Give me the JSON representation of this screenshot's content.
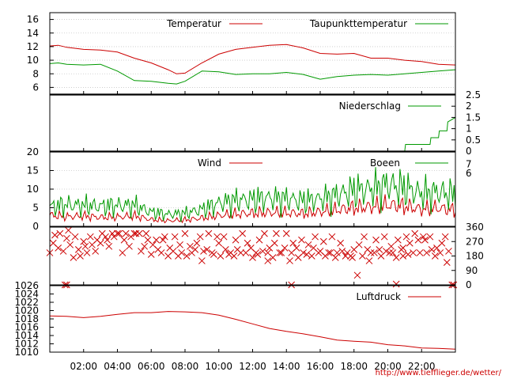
{
  "chart_data": [
    {
      "type": "line",
      "x_unit": "hour",
      "xlim": [
        0,
        24
      ],
      "ylim": [
        5,
        17
      ],
      "yticks": [
        "16",
        "14",
        "12",
        "10",
        "8",
        "6"
      ],
      "grid": true,
      "legend_position": "top-right",
      "series": [
        {
          "name": "Temperatur",
          "color": "#cc0000",
          "x": [
            0,
            0.5,
            1,
            2,
            3,
            4,
            5,
            6,
            7,
            7.5,
            8,
            9,
            10,
            11,
            12,
            13,
            14,
            15,
            16,
            17,
            18,
            19,
            20,
            21,
            22,
            23,
            24
          ],
          "y": [
            12.1,
            12.2,
            11.9,
            11.6,
            11.5,
            11.2,
            10.3,
            9.6,
            8.6,
            8.0,
            8.1,
            9.6,
            10.9,
            11.6,
            11.9,
            12.2,
            12.3,
            11.8,
            11.0,
            10.9,
            11.0,
            10.3,
            10.3,
            10.0,
            9.8,
            9.4,
            9.3
          ]
        },
        {
          "name": "Taupunkttemperatur",
          "color": "#009900",
          "x": [
            0,
            0.5,
            1,
            2,
            3,
            4,
            5,
            6,
            7,
            7.5,
            8,
            9,
            10,
            11,
            12,
            13,
            14,
            15,
            16,
            17,
            18,
            19,
            20,
            21,
            22,
            23,
            24
          ],
          "y": [
            9.5,
            9.6,
            9.4,
            9.3,
            9.4,
            8.4,
            7.0,
            6.9,
            6.6,
            6.5,
            6.9,
            8.4,
            8.3,
            7.9,
            8.0,
            8.0,
            8.2,
            7.9,
            7.2,
            7.6,
            7.8,
            7.9,
            7.8,
            8.0,
            8.2,
            8.4,
            8.6
          ]
        }
      ]
    },
    {
      "type": "line",
      "x_unit": "hour",
      "xlim": [
        0,
        24
      ],
      "ylim": [
        0,
        2.5
      ],
      "yticks": [
        "2.5",
        "2",
        "1.5",
        "1",
        "0.5",
        "0"
      ],
      "legend_position": "top-right",
      "series": [
        {
          "name": "Niederschlag",
          "color": "#009900",
          "x": [
            0,
            21.0,
            21.05,
            21.8,
            21.85,
            22.5,
            22.55,
            23.0,
            23.05,
            23.5,
            23.55,
            24.0
          ],
          "y": [
            0,
            0,
            0.3,
            0.3,
            0.3,
            0.3,
            0.6,
            0.6,
            0.9,
            0.9,
            1.3,
            1.5
          ]
        }
      ]
    },
    {
      "type": "line",
      "x_unit": "hour",
      "xlim": [
        0,
        24
      ],
      "ylim": [
        0,
        20
      ],
      "yticks": [
        "20",
        "15",
        "10",
        "5",
        "0"
      ],
      "right_yticks": [
        "7",
        "6"
      ],
      "grid": true,
      "legend_position": "top-right",
      "series": [
        {
          "name": "Wind",
          "color": "#cc0000",
          "x": [
            0,
            1,
            2,
            3,
            4,
            5,
            6,
            7,
            8,
            9,
            10,
            11,
            12,
            13,
            14,
            15,
            16,
            17,
            18,
            19,
            20,
            21,
            22,
            23,
            24
          ],
          "y": [
            3.0,
            2.6,
            2.8,
            2.4,
            2.5,
            2.8,
            1.8,
            1.5,
            1.7,
            2.2,
            2.9,
            3.3,
            3.5,
            3.7,
            3.6,
            3.4,
            3.9,
            4.4,
            5.0,
            5.2,
            5.8,
            5.4,
            4.6,
            4.9,
            4.3
          ]
        },
        {
          "name": "Boeen",
          "color": "#009900",
          "x": [
            0,
            1,
            2,
            3,
            4,
            5,
            6,
            7,
            8,
            9,
            10,
            11,
            12,
            13,
            14,
            15,
            16,
            17,
            18,
            19,
            20,
            21,
            22,
            23,
            24
          ],
          "y": [
            5.2,
            5.8,
            5.5,
            5.4,
            5.6,
            5.6,
            3.8,
            3.2,
            3.5,
            4.5,
            6.2,
            7.0,
            7.2,
            7.6,
            7.4,
            6.8,
            7.4,
            8.4,
            9.6,
            10.0,
            11.2,
            10.2,
            8.8,
            9.2,
            8.4
          ]
        }
      ]
    },
    {
      "type": "scatter",
      "x_unit": "hour",
      "xlim": [
        0,
        24
      ],
      "ylim": [
        0,
        360
      ],
      "right_yticks": [
        "360",
        "270",
        "180",
        "90",
        "0"
      ],
      "marker": "x",
      "color": "#cc0000",
      "points_x": [
        0.0,
        0.2,
        0.3,
        0.5,
        0.6,
        0.8,
        1.0,
        1.1,
        1.2,
        1.4,
        1.5,
        1.7,
        1.8,
        2.0,
        2.1,
        2.2,
        2.4,
        2.5,
        2.7,
        2.8,
        3.0,
        3.1,
        3.3,
        3.4,
        3.5,
        3.7,
        3.8,
        4.0,
        4.1,
        4.3,
        4.4,
        4.5,
        4.7,
        4.8,
        5.0,
        5.1,
        5.3,
        5.4,
        5.6,
        5.7,
        5.8,
        6.0,
        6.1,
        6.3,
        6.4,
        6.6,
        6.7,
        6.8,
        7.0,
        7.1,
        7.3,
        7.4,
        7.6,
        7.7,
        7.8,
        8.0,
        8.1,
        8.3,
        8.4,
        8.6,
        8.7,
        8.9,
        9.0,
        9.1,
        9.3,
        9.4,
        9.6,
        9.7,
        9.9,
        10.0,
        10.1,
        10.3,
        10.4,
        10.6,
        10.7,
        10.9,
        11.0,
        11.1,
        11.3,
        11.4,
        11.6,
        11.7,
        11.9,
        12.0,
        12.2,
        12.3,
        12.4,
        12.6,
        12.7,
        12.9,
        13.0,
        13.2,
        13.3,
        13.4,
        13.6,
        13.7,
        13.9,
        14.0,
        14.2,
        14.3,
        14.4,
        14.6,
        14.7,
        14.9,
        15.0,
        15.2,
        15.3,
        15.5,
        15.6,
        15.7,
        15.9,
        16.0,
        16.2,
        16.3,
        16.5,
        16.6,
        16.7,
        16.9,
        17.0,
        17.2,
        17.3,
        17.5,
        17.6,
        17.8,
        17.9,
        18.0,
        18.2,
        18.3,
        18.5,
        18.6,
        18.8,
        18.9,
        19.0,
        19.2,
        19.3,
        19.5,
        19.6,
        19.8,
        19.9,
        20.1,
        20.2,
        20.3,
        20.5,
        20.6,
        20.8,
        20.9,
        21.1,
        21.2,
        21.3,
        21.5,
        21.6,
        21.8,
        21.9,
        22.1,
        22.2,
        22.3,
        22.5,
        22.6,
        22.8,
        22.9,
        23.1,
        23.2,
        23.4,
        23.5,
        23.6,
        23.8,
        23.9,
        0.9,
        1.0,
        14.3,
        20.5,
        20.9,
        12.9,
        17.1,
        6.5
      ],
      "points_y": [
        200,
        260,
        310,
        230,
        320,
        210,
        290,
        340,
        250,
        170,
        300,
        220,
        180,
        270,
        240,
        200,
        300,
        250,
        210,
        280,
        260,
        320,
        300,
        280,
        240,
        320,
        300,
        320,
        320,
        200,
        280,
        320,
        240,
        300,
        320,
        320,
        320,
        210,
        240,
        320,
        280,
        190,
        250,
        280,
        220,
        200,
        280,
        300,
        180,
        230,
        210,
        300,
        180,
        250,
        200,
        320,
        180,
        240,
        200,
        220,
        260,
        300,
        150,
        210,
        220,
        320,
        200,
        190,
        300,
        260,
        180,
        300,
        220,
        190,
        200,
        180,
        280,
        220,
        200,
        320,
        200,
        260,
        230,
        170,
        200,
        190,
        280,
        210,
        320,
        200,
        230,
        170,
        260,
        320,
        200,
        200,
        230,
        320,
        150,
        200,
        260,
        230,
        170,
        280,
        200,
        190,
        250,
        180,
        230,
        300,
        200,
        210,
        270,
        180,
        200,
        200,
        300,
        170,
        200,
        260,
        210,
        180,
        200,
        180,
        170,
        220,
        60,
        250,
        180,
        300,
        220,
        150,
        200,
        200,
        280,
        220,
        180,
        300,
        210,
        200,
        240,
        200,
        170,
        280,
        220,
        180,
        300,
        190,
        260,
        200,
        320,
        280,
        200,
        300,
        280,
        200,
        300,
        220,
        180,
        230,
        200,
        260,
        300,
        140,
        210,
        0,
        0,
        0,
        0,
        0,
        5,
        230,
        150
      ],
      "legend_position": "none"
    },
    {
      "type": "line",
      "x_unit": "hour",
      "xlim": [
        0,
        24
      ],
      "ylim": [
        1010,
        1026
      ],
      "yticks": [
        "1026",
        "1024",
        "1022",
        "1020",
        "1018",
        "1016",
        "1014",
        "1012",
        "1010"
      ],
      "legend_position": "top-right",
      "series": [
        {
          "name": "Luftdruck",
          "color": "#cc0000",
          "x": [
            0,
            1,
            2,
            3,
            4,
            5,
            6,
            7,
            8,
            9,
            10,
            11,
            12,
            13,
            14,
            15,
            16,
            17,
            18,
            19,
            20,
            21,
            22,
            23,
            24
          ],
          "y": [
            1018.7,
            1018.6,
            1018.3,
            1018.6,
            1019.1,
            1019.5,
            1019.5,
            1019.8,
            1019.7,
            1019.5,
            1018.9,
            1017.9,
            1016.8,
            1015.7,
            1015.0,
            1014.4,
            1013.7,
            1012.9,
            1012.6,
            1012.4,
            1011.8,
            1011.5,
            1011.0,
            1010.9,
            1010.7
          ]
        }
      ]
    }
  ],
  "x_tick_labels": [
    "02:00",
    "04:00",
    "06:00",
    "08:00",
    "10:00",
    "12:00",
    "14:00",
    "16:00",
    "18:00",
    "20:00",
    "22:00"
  ],
  "x_tick_hours": [
    2,
    4,
    6,
    8,
    10,
    12,
    14,
    16,
    18,
    20,
    22
  ],
  "footer_url": "http://www.tiefflieger.de/wetter/"
}
